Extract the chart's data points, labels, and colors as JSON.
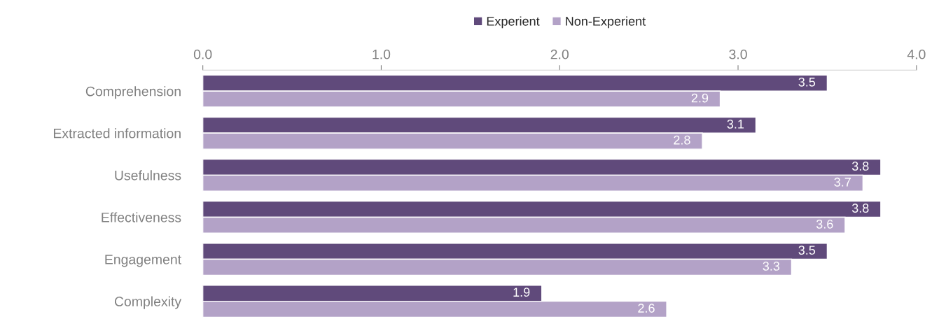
{
  "chart_data": {
    "type": "bar",
    "orientation": "horizontal",
    "categories": [
      "Comprehension",
      "Extracted information",
      "Usefulness",
      "Effectiveness",
      "Engagement",
      "Complexity"
    ],
    "series": [
      {
        "name": "Experient",
        "color": "#604a7b",
        "values": [
          3.5,
          3.1,
          3.8,
          3.8,
          3.5,
          1.9
        ]
      },
      {
        "name": "Non-Experient",
        "color": "#b3a2c7",
        "values": [
          2.9,
          2.8,
          3.7,
          3.6,
          3.3,
          2.6
        ]
      }
    ],
    "xlim": [
      0,
      4
    ],
    "xticks": [
      {
        "value": 0,
        "label": "0.0"
      },
      {
        "value": 1,
        "label": "1.0"
      },
      {
        "value": 2,
        "label": "2.0"
      },
      {
        "value": 3,
        "label": "3.0"
      },
      {
        "value": 4,
        "label": "4.0"
      }
    ],
    "data_labels": true,
    "legend": "top",
    "grid": false
  }
}
